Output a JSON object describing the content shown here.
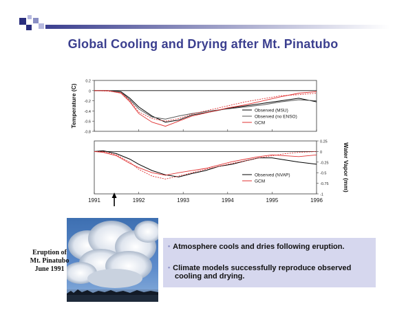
{
  "title": "Global Cooling and Drying after Mt. Pinatubo",
  "colors": {
    "title": "#3b3f8f",
    "observed": "#000000",
    "observed_alt": "#555555",
    "gcm": "#e03030",
    "bullet_bg": "#d6d7ee"
  },
  "photo": {
    "icon": "volcano-eruption-photo"
  },
  "caption": {
    "line1": "Eruption of",
    "line2": "Mt. Pinatubo",
    "line3": "June 1991"
  },
  "bullets": [
    {
      "line1": "Atmosphere cools and dries following eruption.",
      "line2": ""
    },
    {
      "line1": "Climate models successfully reproduce observed",
      "line2": "cooling and drying."
    }
  ],
  "chart_data": [
    {
      "type": "line",
      "ylabel": "Temperature (C)",
      "xlim": [
        1991,
        1996
      ],
      "ylim": [
        -0.8,
        0.2
      ],
      "yticks": [
        0.2,
        0,
        -0.2,
        -0.4,
        -0.6,
        -0.8
      ],
      "ytick_labels": [
        "0.2",
        "0",
        "-0.2",
        "-0.4",
        "-0.6",
        "-0.8"
      ],
      "grid": false,
      "legend_position": "right",
      "series": [
        {
          "name": "Observed (MSU)",
          "color": "#000000",
          "x": [
            1991.0,
            1991.3,
            1991.6,
            1991.8,
            1992.0,
            1992.3,
            1992.6,
            1992.9,
            1993.2,
            1993.6,
            1994.0,
            1994.4,
            1994.8,
            1995.2,
            1995.6,
            1996.0
          ],
          "y": [
            0,
            0,
            -0.02,
            -0.15,
            -0.32,
            -0.5,
            -0.62,
            -0.58,
            -0.48,
            -0.42,
            -0.35,
            -0.3,
            -0.25,
            -0.2,
            -0.15,
            -0.22
          ]
        },
        {
          "name": "Observed (no ENSO)",
          "color": "#555555",
          "x": [
            1991.0,
            1991.3,
            1991.6,
            1991.8,
            1992.0,
            1992.3,
            1992.6,
            1992.9,
            1993.2,
            1993.6,
            1994.0,
            1994.4,
            1994.8,
            1995.2,
            1995.6,
            1996.0
          ],
          "y": [
            0,
            0,
            -0.03,
            -0.18,
            -0.36,
            -0.52,
            -0.56,
            -0.5,
            -0.45,
            -0.4,
            -0.36,
            -0.32,
            -0.28,
            -0.22,
            -0.18,
            -0.2
          ]
        },
        {
          "name": "GCM",
          "color": "#e03030",
          "x": [
            1991.0,
            1991.3,
            1991.6,
            1991.8,
            1992.0,
            1992.3,
            1992.6,
            1992.9,
            1993.2,
            1993.6,
            1994.0,
            1994.4,
            1994.8,
            1995.2,
            1995.6,
            1996.0
          ],
          "y": [
            0,
            0,
            -0.05,
            -0.22,
            -0.45,
            -0.62,
            -0.7,
            -0.6,
            -0.5,
            -0.42,
            -0.34,
            -0.28,
            -0.2,
            -0.12,
            -0.05,
            -0.02
          ]
        },
        {
          "name": "",
          "color": "#e03030",
          "x": [
            1991.0,
            1991.3,
            1991.6,
            1991.8,
            1992.0,
            1992.3,
            1992.6,
            1992.9,
            1993.2,
            1993.6,
            1994.0,
            1994.4,
            1994.8,
            1995.2,
            1995.6,
            1996.0
          ],
          "y": [
            0,
            -0.01,
            -0.04,
            -0.2,
            -0.42,
            -0.55,
            -0.6,
            -0.55,
            -0.46,
            -0.38,
            -0.3,
            -0.22,
            -0.16,
            -0.1,
            -0.08,
            -0.05
          ]
        }
      ]
    },
    {
      "type": "line",
      "ylabel": "Water Vapor (mm)",
      "xlim": [
        1991,
        1996
      ],
      "ylim": [
        -1,
        0.25
      ],
      "yticks": [
        0.25,
        0,
        -0.25,
        -0.5,
        -0.75,
        -1
      ],
      "ytick_labels": [
        "0.25",
        "0",
        "-0.25",
        "-0.5",
        "-0.75",
        "-1"
      ],
      "xticks": [
        1991,
        1992,
        1993,
        1994,
        1995,
        1996
      ],
      "xtick_labels": [
        "1991",
        "1992",
        "1993",
        "1994",
        "1995",
        "1996"
      ],
      "grid": false,
      "legend_position": "right",
      "series": [
        {
          "name": "Observed (NVAP)",
          "color": "#000000",
          "x": [
            1991.0,
            1991.2,
            1991.5,
            1991.8,
            1992.0,
            1992.3,
            1992.6,
            1992.9,
            1993.2,
            1993.5,
            1993.8,
            1994.1,
            1994.4,
            1994.7,
            1995.0,
            1995.3,
            1995.6,
            1996.0
          ],
          "y": [
            0,
            0.02,
            -0.05,
            -0.18,
            -0.3,
            -0.45,
            -0.55,
            -0.6,
            -0.52,
            -0.45,
            -0.35,
            -0.3,
            -0.22,
            -0.15,
            -0.15,
            -0.2,
            -0.25,
            -0.3
          ]
        },
        {
          "name": "GCM",
          "color": "#e03030",
          "x": [
            1991.0,
            1991.2,
            1991.5,
            1991.8,
            1992.0,
            1992.3,
            1992.6,
            1992.9,
            1993.2,
            1993.5,
            1993.8,
            1994.1,
            1994.4,
            1994.7,
            1995.0,
            1995.3,
            1995.6,
            1996.0
          ],
          "y": [
            0,
            0,
            -0.08,
            -0.25,
            -0.42,
            -0.58,
            -0.65,
            -0.58,
            -0.5,
            -0.42,
            -0.35,
            -0.28,
            -0.22,
            -0.15,
            -0.1,
            -0.05,
            -0.02,
            0
          ]
        },
        {
          "name": "",
          "color": "#e03030",
          "x": [
            1991.0,
            1991.2,
            1991.5,
            1991.8,
            1992.0,
            1992.3,
            1992.6,
            1992.9,
            1993.2,
            1993.5,
            1993.8,
            1994.1,
            1994.4,
            1994.7,
            1995.0,
            1995.3,
            1995.6,
            1996.0
          ],
          "y": [
            0,
            -0.02,
            -0.1,
            -0.28,
            -0.38,
            -0.5,
            -0.56,
            -0.5,
            -0.45,
            -0.4,
            -0.32,
            -0.24,
            -0.18,
            -0.12,
            -0.08,
            -0.1,
            -0.12,
            -0.08
          ]
        }
      ]
    }
  ]
}
